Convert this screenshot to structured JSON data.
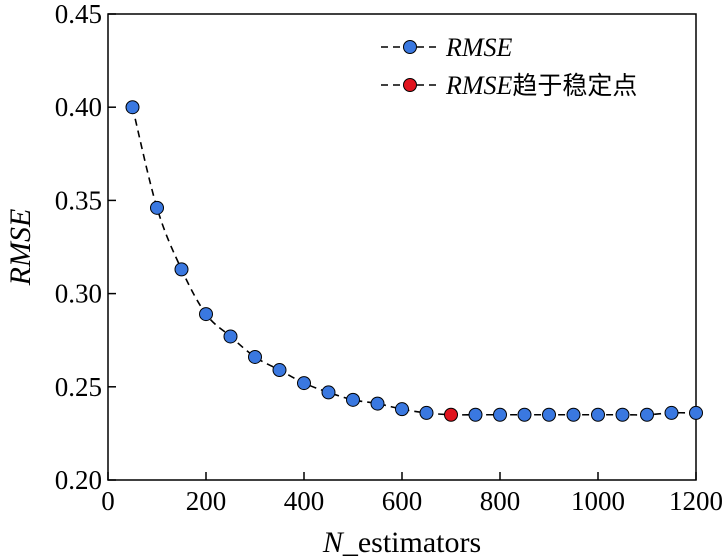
{
  "chart_data": {
    "type": "line",
    "title": "",
    "xlabel_italic": "N",
    "xlabel_rest": "_estimators",
    "ylabel": "RMSE",
    "xlim": [
      0,
      1200
    ],
    "ylim": [
      0.2,
      0.45
    ],
    "xticks": [
      0,
      200,
      400,
      600,
      800,
      1000,
      1200
    ],
    "yticks": [
      0.2,
      0.25,
      0.3,
      0.35,
      0.4,
      0.45
    ],
    "ytick_labels": [
      "0.20",
      "0.25",
      "0.30",
      "0.35",
      "0.40",
      "0.45"
    ],
    "grid": false,
    "legend_position": "top-right",
    "series": [
      {
        "name": "RMSE",
        "color": "#3a78e0",
        "line_style": "dashed",
        "x": [
          50,
          100,
          150,
          200,
          250,
          300,
          350,
          400,
          450,
          500,
          550,
          600,
          650,
          700,
          750,
          800,
          850,
          900,
          950,
          1000,
          1050,
          1100,
          1150,
          1200
        ],
        "y": [
          0.4,
          0.346,
          0.313,
          0.289,
          0.277,
          0.266,
          0.259,
          0.252,
          0.247,
          0.243,
          0.241,
          0.238,
          0.236,
          0.235,
          0.235,
          0.235,
          0.235,
          0.235,
          0.235,
          0.235,
          0.235,
          0.235,
          0.236,
          0.236
        ]
      }
    ],
    "stable_point": {
      "name_italic": "RMSE",
      "name_rest": "趋于稳定点",
      "color": "#e0141e",
      "x": 700,
      "y": 0.235
    }
  }
}
